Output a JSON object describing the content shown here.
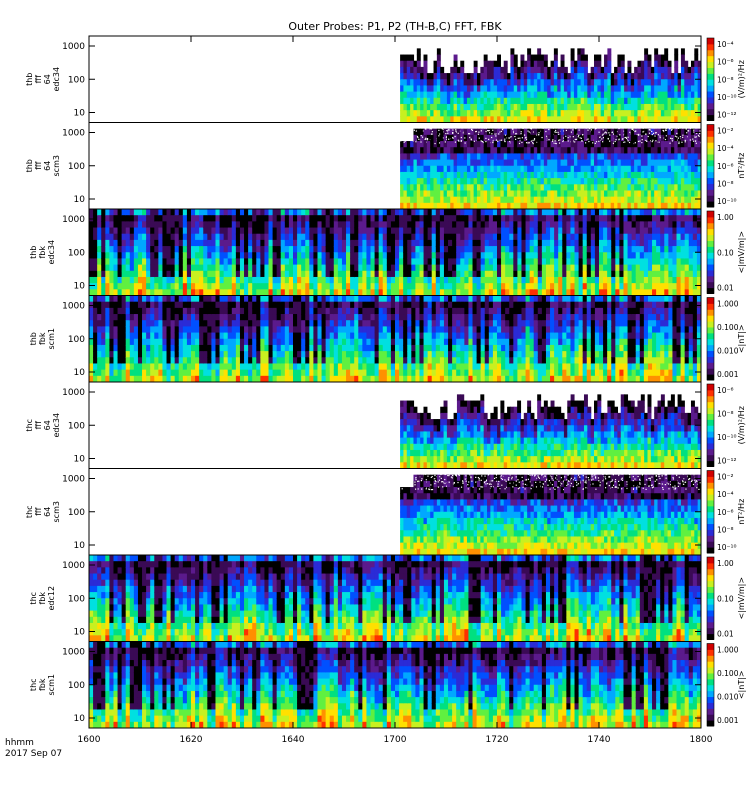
{
  "chart_data": {
    "type": "heatmap",
    "title": "Outer Probes: P1, P2 (TH-B,C) FFT, FBK",
    "time_label": "hhmm",
    "date_label": "2017 Sep 07",
    "x_ticks": [
      "1600",
      "1620",
      "1640",
      "1700",
      "1720",
      "1740",
      "1800"
    ],
    "xlim": [
      "1600",
      "1800"
    ],
    "colormap": [
      "#000000",
      "#3a0a55",
      "#5b1a8c",
      "#2b2bd6",
      "#0050ff",
      "#00a8ff",
      "#00e0e0",
      "#00e080",
      "#60f040",
      "#c8f020",
      "#ffe000",
      "#ff9000",
      "#ff3000",
      "#d00000"
    ],
    "panels": [
      {
        "id": "thb_fff_64_edc34",
        "label_lines": [
          "thb",
          "fff",
          "64",
          "edc34"
        ],
        "yscale": "log",
        "y_ticks": [
          "10",
          "100",
          "1000"
        ],
        "cb_label": "(V/m)²/Hz",
        "cb_ticks": [
          "10⁻⁴",
          "10⁻⁶",
          "10⁻⁸",
          "10⁻¹⁰",
          "10⁻¹²"
        ],
        "data_start": "1701",
        "coverage": "partial",
        "noise": "spiky"
      },
      {
        "id": "thb_fff_64_scm3",
        "label_lines": [
          "thb",
          "fff",
          "64",
          "scm3"
        ],
        "yscale": "log",
        "y_ticks": [
          "10",
          "100",
          "1000"
        ],
        "cb_label": "nT²/Hz",
        "cb_ticks": [
          "10⁻²",
          "10⁻⁴",
          "10⁻⁶",
          "10⁻⁸",
          "10⁻¹⁰"
        ],
        "data_start": "1701",
        "coverage": "partial",
        "noise": "speckle"
      },
      {
        "id": "thb_fbk_edc34",
        "label_lines": [
          "thb",
          "fbk",
          "edc34"
        ],
        "yscale": "log",
        "y_ticks": [
          "10",
          "100",
          "1000"
        ],
        "cb_label": "<|mV/m|>",
        "cb_ticks": [
          "1.00",
          "0.10",
          "0.01"
        ],
        "data_start": "1600",
        "coverage": "full",
        "noise": "stripes"
      },
      {
        "id": "thb_fbk_scm1",
        "label_lines": [
          "thb",
          "fbk",
          "scm1"
        ],
        "yscale": "log",
        "y_ticks": [
          "10",
          "100",
          "1000"
        ],
        "cb_label": "<|nT|>",
        "cb_ticks": [
          "1.000",
          "0.100",
          "0.010",
          "0.001"
        ],
        "data_start": "1600",
        "coverage": "full",
        "noise": "stripes"
      },
      {
        "id": "thc_fff_64_edc34",
        "label_lines": [
          "thc",
          "fff",
          "64",
          "edc34"
        ],
        "yscale": "log",
        "y_ticks": [
          "10",
          "100",
          "1000"
        ],
        "cb_label": "(V/m)²/Hz",
        "cb_ticks": [
          "10⁻⁶",
          "10⁻⁸",
          "10⁻¹⁰",
          "10⁻¹²"
        ],
        "data_start": "1701",
        "coverage": "partial",
        "noise": "spiky"
      },
      {
        "id": "thc_fff_64_scm3",
        "label_lines": [
          "thc",
          "fff",
          "64",
          "scm3"
        ],
        "yscale": "log",
        "y_ticks": [
          "10",
          "100",
          "1000"
        ],
        "cb_label": "nT²/Hz",
        "cb_ticks": [
          "10⁻²",
          "10⁻⁴",
          "10⁻⁶",
          "10⁻⁸",
          "10⁻¹⁰"
        ],
        "data_start": "1701",
        "coverage": "partial",
        "noise": "speckle"
      },
      {
        "id": "thc_fbk_edc12",
        "label_lines": [
          "thc",
          "fbk",
          "edc12"
        ],
        "yscale": "log",
        "y_ticks": [
          "10",
          "100",
          "1000"
        ],
        "cb_label": "<|mV/m|>",
        "cb_ticks": [
          "1.00",
          "0.10",
          "0.01"
        ],
        "data_start": "1600",
        "coverage": "full",
        "noise": "stripes"
      },
      {
        "id": "thc_fbk_scm1",
        "label_lines": [
          "thc",
          "fbk",
          "scm1"
        ],
        "yscale": "log",
        "y_ticks": [
          "10",
          "100",
          "1000"
        ],
        "cb_label": "<|nT|>",
        "cb_ticks": [
          "1.000",
          "0.100",
          "0.010",
          "0.001"
        ],
        "data_start": "1600",
        "coverage": "full",
        "noise": "stripes"
      }
    ]
  }
}
